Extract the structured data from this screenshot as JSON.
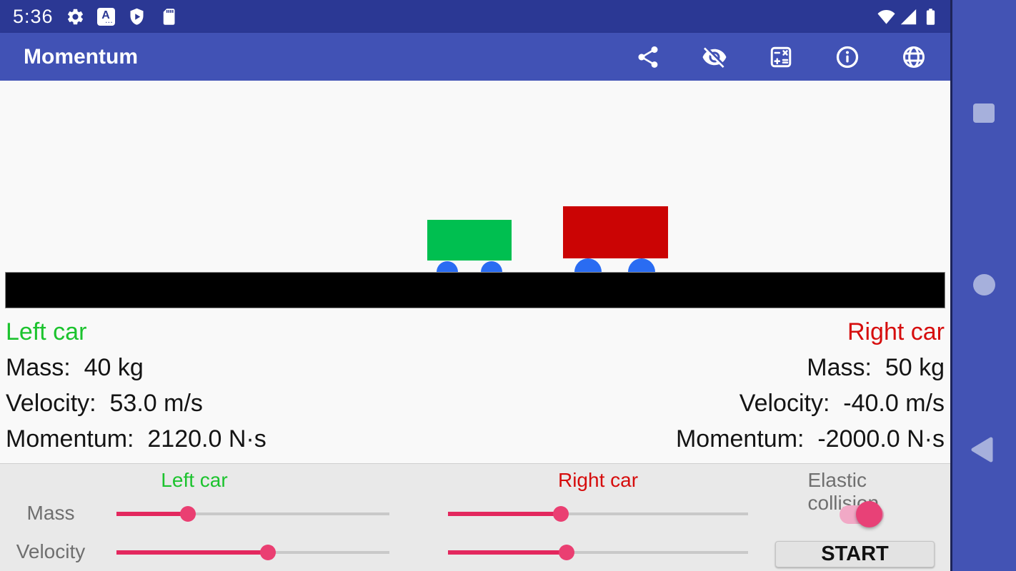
{
  "status_bar": {
    "time": "5:36",
    "left_icons": [
      "settings-icon",
      "language-icon",
      "play-protect-icon",
      "sdcard-icon"
    ],
    "right_icons": [
      "wifi-icon",
      "cell-signal-icon",
      "battery-icon"
    ]
  },
  "app_bar": {
    "title": "Momentum",
    "action_icons": [
      "share-icon",
      "hide-values-icon",
      "calculator-icon",
      "info-icon",
      "globe-icon"
    ]
  },
  "simulation": {
    "left_car": {
      "title": "Left car",
      "mass": "Mass:  40 kg",
      "velocity": "Velocity:  53.0 m/s",
      "momentum": "Momentum:  2120.0 N·s"
    },
    "right_car": {
      "title": "Right car",
      "mass": "Mass:  50 kg",
      "velocity": "Velocity:  -40.0 m/s",
      "momentum": "Momentum:  -2000.0 N·s"
    }
  },
  "controls": {
    "left_header": "Left car",
    "right_header": "Right car",
    "elastic_label": "Elastic collision",
    "elastic_on": true,
    "mass_label": "Mass",
    "velocity_label": "Velocity",
    "start_label": "START",
    "sliders": {
      "left_mass_pct": 26.2,
      "left_velocity_pct": 55.5,
      "right_mass_pct": 37.6,
      "right_velocity_pct": 39.5
    }
  },
  "nav_bar": {
    "icons": [
      "recents-icon",
      "home-icon",
      "back-icon"
    ]
  },
  "colors": {
    "status_bar": "#2b3894",
    "app_bar": "#4152b5",
    "nav_bar": "#4353b4",
    "panel_bg": "#e9e9e9",
    "accent_pink": "#e3285e",
    "left_car_green": "#00bf50",
    "left_car_text_green": "#1cc32e",
    "right_car_red": "#cb0404",
    "right_car_text_red": "#d60d0d",
    "wheel_blue": "#2a6cf2",
    "ground_black": "#000000"
  }
}
